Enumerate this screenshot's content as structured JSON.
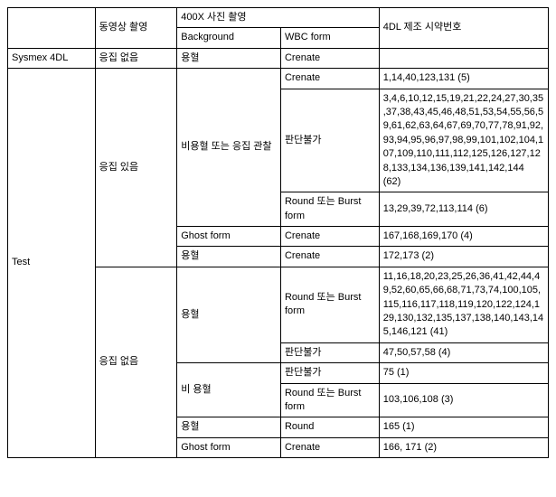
{
  "headers": {
    "video": "동영상 촬영",
    "photo400x": "400X 사진 촬영",
    "background": "Background",
    "wbcform": "WBC form",
    "reagentNo": "4DL 제조 시약번호"
  },
  "rows": {
    "sysmex": "Sysmex 4DL",
    "test": "Test",
    "agg_none": "응집 없음",
    "agg_yes": "응집 있음",
    "hemolysis": "용혈",
    "non_hemo_or_agg": "비용혈 또는 응집 관찰",
    "ghost_form": "Ghost form",
    "non_hemolysis": "비 용혈",
    "crenate": "Crenate",
    "undeterminable": "판단불가",
    "round_or_burst": "Round 또는 Burst form",
    "round": "Round"
  },
  "values": {
    "v1": "1,14,40,123,131   (5)",
    "v2": "3,4,6,10,12,15,19,21,22,24,27,30,35,37,38,43,45,46,48,51,53,54,55,56,59,61,62,63,64,67,69,70,77,78,91,92,93,94,95,96,97,98,99,101,102,104,107,109,110,111,112,125,126,127,128,133,134,136,139,141,142,144    (62)",
    "v3": "13,29,39,72,113,114   (6)",
    "v4": "167,168,169,170    (4)",
    "v5": "172,173    (2)",
    "v6": "11,16,18,20,23,25,26,36,41,42,44,49,52,60,65,66,68,71,73,74,100,105,115,116,117,118,119,120,122,124,129,130,132,135,137,138,140,143,145,146,121 (41)",
    "v7": "47,50,57,58   (4)",
    "v8": "75    (1)",
    "v9": "103,106,108   (3)",
    "v10": "165    (1)",
    "v11": "166, 171    (2)"
  }
}
